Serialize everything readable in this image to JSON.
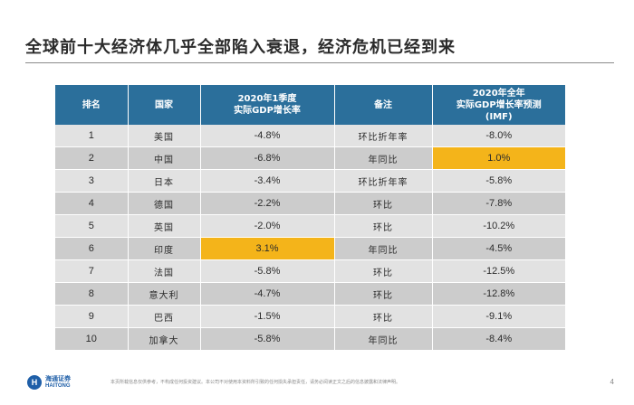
{
  "title": "全球前十大经济体几乎全部陷入衰退，经济危机已经到来",
  "table": {
    "headers": {
      "rank": "排名",
      "country": "国家",
      "q1_line1": "2020年1季度",
      "q1_line2": "实际GDP增长率",
      "note": "备注",
      "fy_line1": "2020年全年",
      "fy_line2": "实际GDP增长率预测",
      "fy_line3": "(IMF)"
    },
    "rows": [
      {
        "rank": "1",
        "country": "美国",
        "q1": "-4.8%",
        "note": "环比折年率",
        "forecast": "-8.0%"
      },
      {
        "rank": "2",
        "country": "中国",
        "q1": "-6.8%",
        "note": "年同比",
        "forecast": "1.0%"
      },
      {
        "rank": "3",
        "country": "日本",
        "q1": "-3.4%",
        "note": "环比折年率",
        "forecast": "-5.8%"
      },
      {
        "rank": "4",
        "country": "德国",
        "q1": "-2.2%",
        "note": "环比",
        "forecast": "-7.8%"
      },
      {
        "rank": "5",
        "country": "英国",
        "q1": "-2.0%",
        "note": "环比",
        "forecast": "-10.2%"
      },
      {
        "rank": "6",
        "country": "印度",
        "q1": "3.1%",
        "note": "年同比",
        "forecast": "-4.5%"
      },
      {
        "rank": "7",
        "country": "法国",
        "q1": "-5.8%",
        "note": "环比",
        "forecast": "-12.5%"
      },
      {
        "rank": "8",
        "country": "意大利",
        "q1": "-4.7%",
        "note": "环比",
        "forecast": "-12.8%"
      },
      {
        "rank": "9",
        "country": "巴西",
        "q1": "-1.5%",
        "note": "环比",
        "forecast": "-9.1%"
      },
      {
        "rank": "10",
        "country": "加拿大",
        "q1": "-5.8%",
        "note": "年同比",
        "forecast": "-8.4%"
      }
    ],
    "highlights": {
      "china_forecast": "1.0%",
      "india_q1": "3.1%"
    }
  },
  "footer": {
    "logo_cn": "海通证券",
    "logo_en": "HAITONG",
    "disclaimer": "本页所载信息仅供参考，不构成任何投资建议。本公司不对使用本资料所引致的任何损失承担责任，请务必阅读正文之后的信息披露和法律声明。",
    "page_number": "4"
  },
  "colors": {
    "header_bg": "#2b6f9b",
    "row_light": "#e2e2e2",
    "row_dark": "#cccccc",
    "highlight": "#f4b41a"
  }
}
